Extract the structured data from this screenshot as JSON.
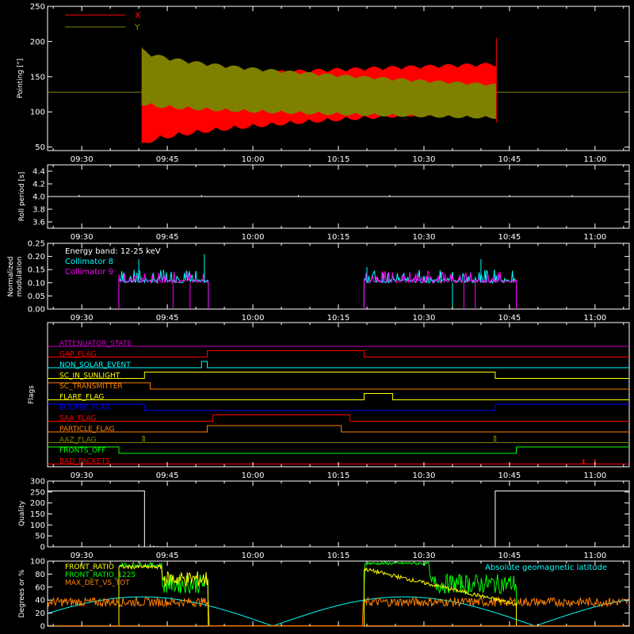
{
  "colors": {
    "axis": "#ffffff",
    "x_red": "#ff0000",
    "y_olive": "#808000",
    "cyan": "#00ffff",
    "magenta": "#ff00ff",
    "green": "#00ff00",
    "yellow": "#ffff00",
    "orange": "#ff8000",
    "blue": "#0000ff",
    "purple": "#cc00cc"
  },
  "time_axis": {
    "tick_labels": [
      "09:30",
      "09:45",
      "10:00",
      "10:15",
      "10:30",
      "10:45",
      "11:00"
    ],
    "tick_minutes": [
      570,
      585,
      600,
      615,
      630,
      645,
      660
    ],
    "range_minutes": [
      564,
      666
    ]
  },
  "chart_data": [
    {
      "type": "area",
      "ylabel": "Pointing [\"]",
      "ylim": [
        45,
        250
      ],
      "yticks": [
        50,
        100,
        150,
        200,
        250
      ],
      "legend": [
        "X",
        "Y"
      ],
      "baseline": 128,
      "active_range": [
        580.5,
        642.7
      ],
      "series": [
        {
          "name": "X",
          "start_lower": 48,
          "start_upper": 140,
          "end_lower": 100,
          "end_upper": 170
        },
        {
          "name": "Y",
          "start_lower": 110,
          "start_upper": 193,
          "end_lower": 90,
          "end_upper": 140
        }
      ]
    },
    {
      "type": "line",
      "ylabel": "Roll period [s]",
      "ylim": [
        3.5,
        4.5
      ],
      "yticks": [
        3.6,
        3.8,
        4.0,
        4.2,
        4.4
      ],
      "value": 4.0
    },
    {
      "type": "bar",
      "ylabel": [
        "Normalized",
        "modulation"
      ],
      "ylim": [
        0,
        0.25
      ],
      "yticks": [
        0.0,
        0.05,
        0.1,
        0.15,
        0.2,
        0.25
      ],
      "legend_title": "Energy band: 12-25 keV",
      "series": [
        {
          "name": "Collimator 8",
          "segments": [
            [
              576.5,
              592.2
            ],
            [
              619.5,
              646.2
            ]
          ],
          "level": 0.1
        },
        {
          "name": "Collimator 9",
          "segments": [
            [
              576.5,
              592.2
            ],
            [
              619.5,
              646.2
            ]
          ],
          "level": 0.1
        }
      ]
    },
    {
      "type": "line",
      "ylabel": "Flags",
      "flags": [
        {
          "name": "ATTENUATOR_STATE",
          "color": "#cc00cc",
          "transitions": []
        },
        {
          "name": "GAP_FLAG",
          "color": "#ff0000",
          "transitions": [
            [
              592,
              1
            ],
            [
              619.5,
              0
            ]
          ]
        },
        {
          "name": "NON_SOLAR_EVENT",
          "color": "#00ffff",
          "transitions": [
            [
              591,
              1
            ],
            [
              592,
              0
            ]
          ]
        },
        {
          "name": "SC_IN_SUNLIGHT",
          "color": "#ffff00",
          "transitions": [
            [
              581,
              1
            ],
            [
              642.5,
              0
            ]
          ]
        },
        {
          "name": "SC_TRANSMITTER",
          "color": "#ff8000",
          "transitions": [
            [
              582,
              0
            ]
          ]
        },
        {
          "name": "FLARE_FLAG",
          "color": "#ffff00",
          "transitions": [
            [
              619.5,
              1
            ],
            [
              624.5,
              0
            ]
          ]
        },
        {
          "name": "ECLIPSE_FLAG",
          "color": "#0000ff",
          "transitions": [
            [
              581,
              0
            ],
            [
              642.5,
              1
            ]
          ]
        },
        {
          "name": "SAA_FLAG",
          "color": "#ff0000",
          "transitions": [
            [
              593,
              1
            ],
            [
              617,
              0
            ]
          ]
        },
        {
          "name": "PARTICLE_FLAG",
          "color": "#ff8000",
          "transitions": [
            [
              592,
              1
            ],
            [
              615.5,
              0
            ]
          ]
        },
        {
          "name": "AAZ_FLAG",
          "color": "#808000",
          "transitions": [
            [
              580.7,
              1
            ],
            [
              581,
              0
            ],
            [
              642.3,
              1
            ],
            [
              642.6,
              0
            ]
          ]
        },
        {
          "name": "FRONTS_OFF",
          "color": "#00ff00",
          "transitions": [
            [
              576.5,
              0
            ],
            [
              646.2,
              1
            ]
          ]
        },
        {
          "name": "BAD_PACKETS",
          "color": "#ff0000",
          "transitions": []
        }
      ]
    },
    {
      "type": "line",
      "ylabel": "Quality",
      "ylim": [
        0,
        300
      ],
      "yticks": [
        0,
        50,
        100,
        150,
        200,
        250,
        300
      ],
      "high_value": 255,
      "segments": [
        [
          564,
          581
        ],
        [
          642.5,
          666
        ]
      ]
    },
    {
      "type": "line",
      "ylabel": "Degrees or %",
      "ylim": [
        0,
        100
      ],
      "yticks": [
        0,
        20,
        40,
        60,
        80,
        100
      ],
      "legend": [
        "FRONT_RATIO",
        "FRONT_RATIO_1225"
      ],
      "legend_extra": "MAX_DET_VS_TOT",
      "annotation": "Absolute geomagnetic latitude"
    }
  ]
}
